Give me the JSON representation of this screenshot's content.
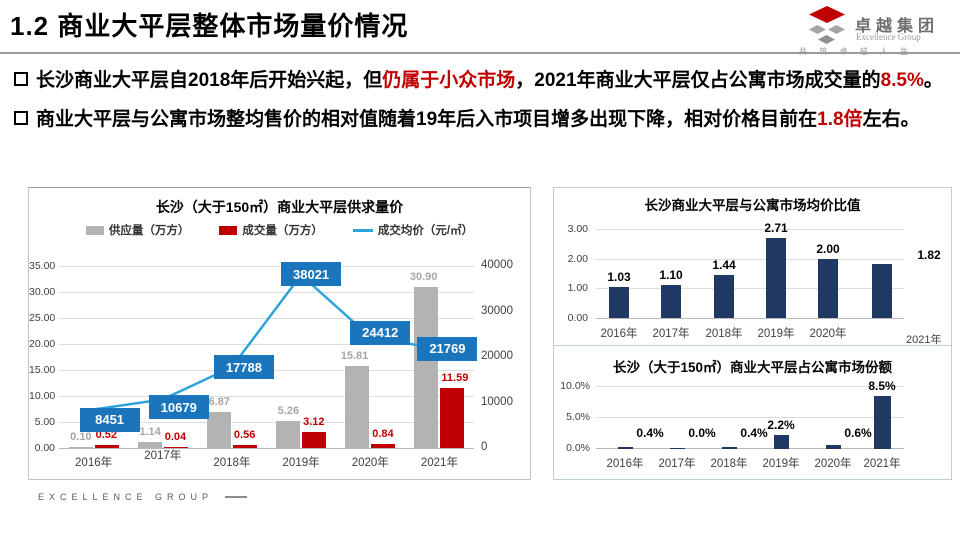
{
  "header": {
    "title": "1.2 商业大平层整体市场量价情况",
    "logo": {
      "company_cn": "卓越集团",
      "company_en": "Excellence Group",
      "slogan": "共 筑 卓 越 人 生"
    }
  },
  "bullets": [
    {
      "segments": [
        {
          "text": "长沙商业大平层自2018年后开始兴起，但",
          "red": false
        },
        {
          "text": "仍属于小众市场",
          "red": true
        },
        {
          "text": "，2021年商业大平层仅占公寓市场成交量的",
          "red": false
        },
        {
          "text": "8.5%",
          "red": true
        },
        {
          "text": "。",
          "red": false
        }
      ]
    },
    {
      "segments": [
        {
          "text": "商业大平层与公寓市场整均售价的相对值随着19年后入市项目增多出现下降，相对价格目前在",
          "red": false
        },
        {
          "text": "1.8倍",
          "red": true
        },
        {
          "text": "左右。",
          "red": false
        }
      ]
    }
  ],
  "footer": {
    "brand": "EXCELLENCE GROUP"
  },
  "colors": {
    "accent_red": "#c00000",
    "bar_gray": "#b3b3b3",
    "bar_navy": "#1f3864",
    "line_blue": "#2fa3dc",
    "label_box_blue": "#1b75bc"
  },
  "chart_data": [
    {
      "id": "supply-demand-price",
      "type": "combo-bar-line",
      "title": "长沙（大于150㎡）商业大平层供求量价",
      "categories": [
        "2016年",
        "2017年",
        "2018年",
        "2019年",
        "2020年",
        "2021年"
      ],
      "series": [
        {
          "name": "供应量（万方）",
          "type": "bar",
          "color": "#b3b3b3",
          "values": [
            0.1,
            1.14,
            6.87,
            5.26,
            15.81,
            30.9
          ],
          "labels": [
            "0.10",
            "1.14",
            "6.87",
            "5.26",
            "15.81",
            "30.90"
          ]
        },
        {
          "name": "成交量（万方）",
          "type": "bar",
          "color": "#c00000",
          "values": [
            0.52,
            0.04,
            0.56,
            3.12,
            0.84,
            11.59
          ],
          "labels": [
            "0.52",
            "0.04",
            "0.56",
            "3.12",
            "0.84",
            "11.59"
          ]
        },
        {
          "name": "成交均价（元/㎡）",
          "type": "line",
          "color": "#2fa3dc",
          "values": [
            8451,
            10679,
            17788,
            38021,
            24412,
            21769
          ],
          "labels": [
            "8451",
            "10679",
            "17788",
            "38021",
            "24412",
            "21769"
          ]
        }
      ],
      "left_axis": {
        "max": 35,
        "ticks": [
          "35.00",
          "30.00",
          "25.00",
          "20.00",
          "15.00",
          "10.00",
          "5.00",
          "0.00"
        ]
      },
      "right_axis": {
        "max": 40000,
        "ticks": [
          "40000",
          "30000",
          "20000",
          "10000",
          "0"
        ]
      }
    },
    {
      "id": "price-ratio",
      "type": "bar",
      "title": "长沙商业大平层与公寓市场均价比值",
      "categories": [
        "2016年",
        "2017年",
        "2018年",
        "2019年",
        "2020年",
        "2021年"
      ],
      "values": [
        1.03,
        1.1,
        1.44,
        2.71,
        2.0,
        1.82
      ],
      "labels": [
        "1.03",
        "1.10",
        "1.44",
        "2.71",
        "2.00",
        "1.82"
      ],
      "ylim": [
        0,
        3
      ],
      "yticks": [
        "3.00",
        "2.00",
        "1.00",
        "0.00"
      ]
    },
    {
      "id": "market-share",
      "type": "bar",
      "title": "长沙（大于150㎡）商业大平层占公寓市场份额",
      "categories": [
        "2016年",
        "2017年",
        "2018年",
        "2019年",
        "2020年",
        "2021年"
      ],
      "values": [
        0.4,
        0.0,
        0.4,
        2.2,
        0.6,
        8.5
      ],
      "labels": [
        "0.4%",
        "0.0%",
        "0.4%",
        "2.2%",
        "0.6%",
        "8.5%"
      ],
      "ylim": [
        0,
        10
      ],
      "yticks": [
        "10.0%",
        "5.0%",
        "0.0%"
      ]
    }
  ]
}
